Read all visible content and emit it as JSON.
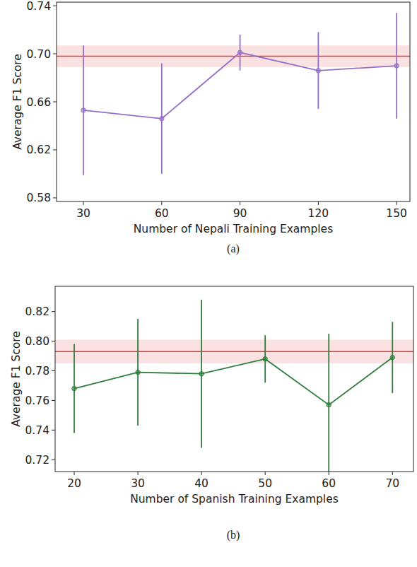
{
  "chart_data": [
    {
      "type": "line",
      "caption": "(a)",
      "x_label": "Number of Nepali Training Examples",
      "y_label": "Average F1 Score",
      "x": [
        30,
        60,
        90,
        120,
        150
      ],
      "series": [
        {
          "color": "#9370c8",
          "marker": "circle",
          "values": [
            0.653,
            0.646,
            0.701,
            0.686,
            0.69
          ],
          "errors": [
            0.054,
            0.046,
            0.015,
            0.032,
            0.044
          ]
        }
      ],
      "reference": {
        "value": 0.698,
        "error": 0.009,
        "color": "#e03a3a"
      },
      "xlim": [
        19.7,
        155.1
      ],
      "xticks": [
        30,
        60,
        90,
        120,
        150
      ],
      "ylim": [
        0.577,
        0.743
      ],
      "yticks": [
        0.58,
        0.62,
        0.66,
        {
          "value": 0.7,
          "label": "0.70"
        },
        0.74
      ],
      "grid": false
    },
    {
      "type": "line",
      "caption": "(b)",
      "x_label": "Number of Spanish Training Examples",
      "y_label": "Average F1 Score",
      "x": [
        20,
        30,
        40,
        50,
        60,
        70
      ],
      "series": [
        {
          "color": "#2e7d3c",
          "marker": "circle",
          "values": [
            0.768,
            0.779,
            0.778,
            0.788,
            0.757,
            0.789
          ],
          "errors": [
            0.03,
            0.036,
            0.05,
            0.016,
            0.048,
            0.024
          ]
        }
      ],
      "reference": {
        "value": 0.793,
        "error": 0.008,
        "color": "#e03a3a"
      },
      "xlim": [
        17,
        73.3
      ],
      "xticks": [
        20,
        30,
        40,
        50,
        60,
        70
      ],
      "ylim": [
        0.712,
        0.837
      ],
      "yticks": [
        0.72,
        0.74,
        0.76,
        0.78,
        {
          "value": 0.8,
          "label": "0.80"
        },
        0.82
      ],
      "grid": false
    }
  ]
}
